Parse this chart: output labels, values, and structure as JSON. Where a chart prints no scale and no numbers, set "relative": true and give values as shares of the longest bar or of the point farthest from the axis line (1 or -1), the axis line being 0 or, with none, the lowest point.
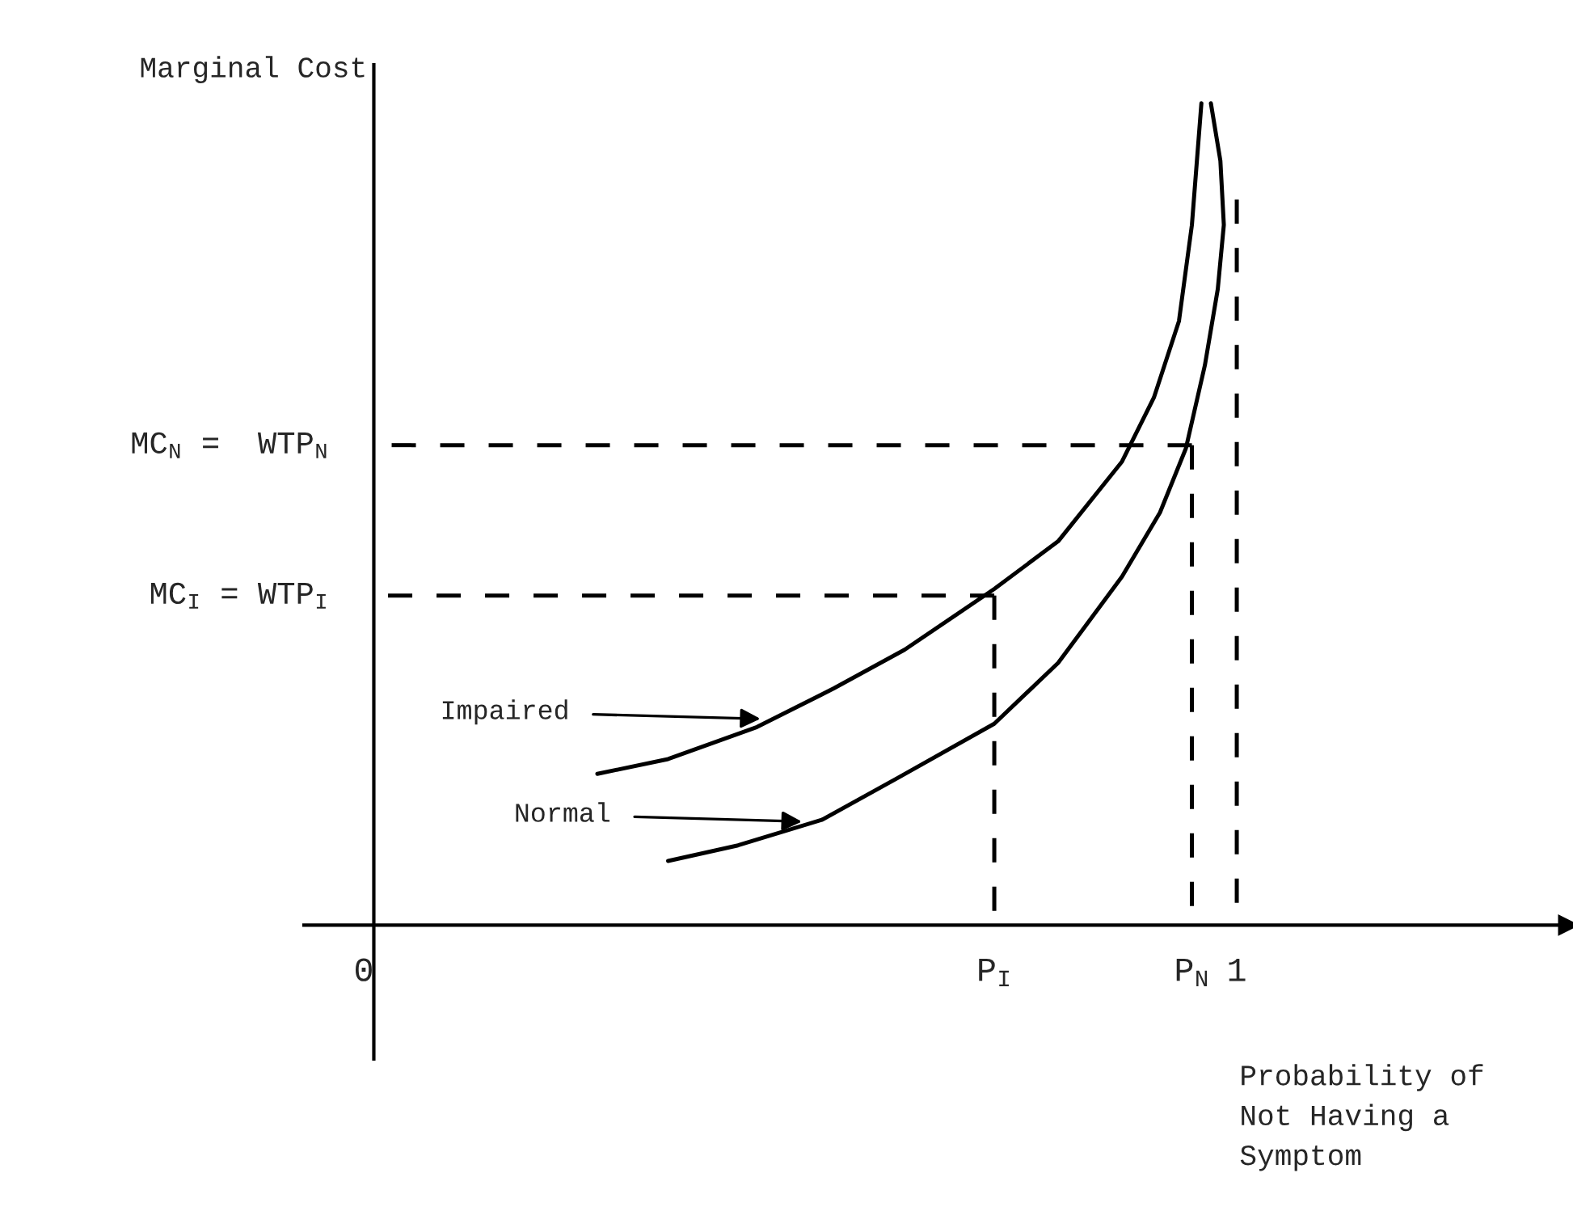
{
  "chart_data": {
    "type": "line",
    "relative": true,
    "xlabel": "Probability of\nNot Having a\nSymptom",
    "ylabel": "Marginal Cost",
    "xlim": [
      -0.081,
      1.384
    ],
    "xticks": [
      {
        "value": 0,
        "label": "0"
      },
      {
        "value": 0.719,
        "label": "P$_{I}$"
      },
      {
        "value": 0.948,
        "label": "P$_{N}$"
      },
      {
        "value": 1,
        "label": "1"
      }
    ],
    "tick_labels": "x",
    "grid": false,
    "marker": "none",
    "series": [
      {
        "color": "#000000",
        "line_style": "solid",
        "x": [
          0.259,
          0.341,
          0.444,
          0.533,
          0.615,
          0.719,
          0.793,
          0.867,
          0.904,
          0.933,
          0.948,
          0.959
        ],
        "values": [
          0.184,
          0.202,
          0.241,
          0.288,
          0.335,
          0.409,
          0.467,
          0.564,
          0.642,
          0.735,
          0.852,
          1.0
        ]
      },
      {
        "color": "#000000",
        "line_style": "solid",
        "x": [
          0.341,
          0.422,
          0.519,
          0.607,
          0.719,
          0.793,
          0.867,
          0.911,
          0.941,
          0.963,
          0.978,
          0.985,
          0.981,
          0.97
        ],
        "values": [
          0.078,
          0.097,
          0.128,
          0.179,
          0.245,
          0.319,
          0.424,
          0.502,
          0.58,
          0.681,
          0.774,
          0.852,
          0.93,
          1.0
        ]
      },
      {
        "color": "#000000",
        "line_style": "dashed",
        "x": [
          0.948,
          0
        ],
        "values": [
          0.584,
          0.584
        ]
      },
      {
        "color": "#000000",
        "line_style": "dashed",
        "x": [
          0.719,
          0
        ],
        "values": [
          0.401,
          0.401
        ]
      },
      {
        "color": "#000000",
        "line_style": "dashed",
        "x": [
          0.719,
          0.719
        ],
        "values": [
          0.401,
          0
        ]
      },
      {
        "color": "#000000",
        "line_style": "dashed",
        "x": [
          0.948,
          0.948
        ],
        "values": [
          0.584,
          0
        ]
      },
      {
        "color": "#000000",
        "line_style": "dashed",
        "x": [
          1,
          1
        ],
        "values": [
          0.883,
          0
        ]
      }
    ],
    "annotations": [
      {
        "text": "MC$_{N}$ =  WTP$_{N}$",
        "x": 0,
        "y": 0.584
      },
      {
        "text": "MC$_{I}$ = WTP$_{I}$",
        "x": 0,
        "y": 0.401
      },
      {
        "text": "Impaired",
        "x": 0.448,
        "y": 0.251
      },
      {
        "text": "Normal",
        "x": 0.496,
        "y": 0.126
      }
    ]
  }
}
